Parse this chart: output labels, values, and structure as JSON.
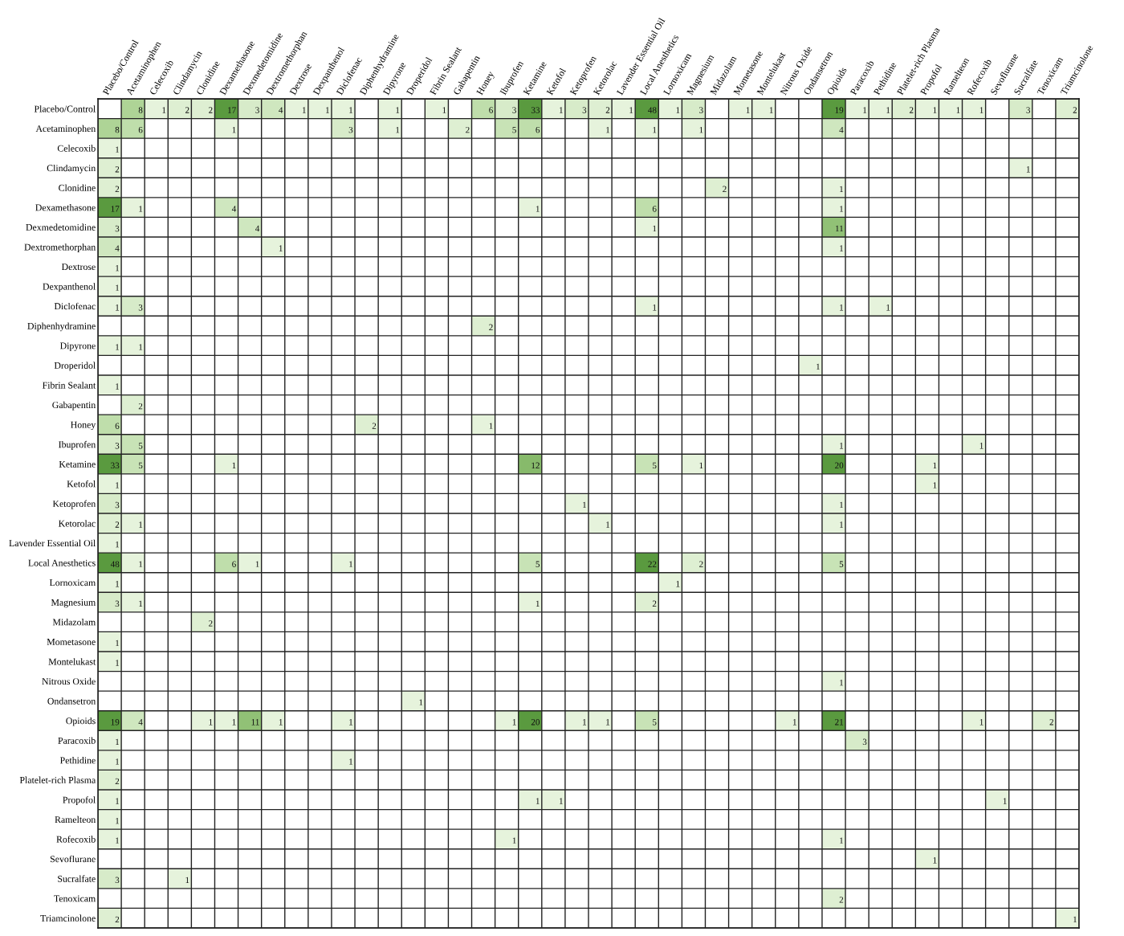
{
  "chart_data": {
    "type": "heatmap",
    "categories": [
      "Placebo/Control",
      "Acetaminophen",
      "Celecoxib",
      "Clindamycin",
      "Clonidine",
      "Dexamethasone",
      "Dexmedetomidine",
      "Dextromethorphan",
      "Dextrose",
      "Dexpanthenol",
      "Diclofenac",
      "Diphenhydramine",
      "Dipyrone",
      "Droperidol",
      "Fibrin Sealant",
      "Gabapentin",
      "Honey",
      "Ibuprofen",
      "Ketamine",
      "Ketofol",
      "Ketoprofen",
      "Ketorolac",
      "Lavender Essential Oil",
      "Local Anesthetics",
      "Lornoxicam",
      "Magnesium",
      "Midazolam",
      "Mometasone",
      "Montelukast",
      "Nitrous Oxide",
      "Ondansetron",
      "Opioids",
      "Paracoxib",
      "Pethidine",
      "Platelet-rich Plasma",
      "Propofol",
      "Ramelteon",
      "Rofecoxib",
      "Sevoflurane",
      "Sucralfate",
      "Tenoxicam",
      "Triamcinolone"
    ],
    "y_categories": [
      "Placebo/Control",
      "Acetaminophen",
      "Celecoxib",
      "Clindamycin",
      "Clonidine",
      "Dexamethasone",
      "Dexmedetomidine",
      "Dextromethorphan",
      "Dextrose",
      "Dexpanthenol",
      "Diclofenac",
      "Diphenhydramine",
      "Dipyrone",
      "Droperidol",
      "Fibrin Sealant",
      "Gabapentin",
      "Honey",
      "Ibuprofen",
      "Ketamine",
      "Ketofol",
      "Ketoprofen",
      "Ketorolac",
      "Lavender Essential Oil",
      "Local Anesthetics",
      "Lornoxicam",
      "Magnesium",
      "Midazolam",
      "Mometasone",
      "Montelukast",
      "Nitrous Oxide",
      "Ondansetron",
      "Opioids",
      "Paracoxib",
      "Pethidine",
      "Platelet-rich Plasma",
      "Propofol",
      "Ramelteon",
      "Rofecoxib",
      "Sevoflurane",
      "Sucralfate",
      "Tenoxicam",
      "Triamcinolone"
    ],
    "data_labels": true,
    "grid": true,
    "cells": [
      [
        null,
        8,
        1,
        2,
        2,
        17,
        3,
        4,
        1,
        1,
        1,
        null,
        1,
        null,
        1,
        null,
        6,
        3,
        33,
        1,
        3,
        2,
        1,
        48,
        1,
        3,
        null,
        1,
        1,
        null,
        null,
        19,
        1,
        1,
        2,
        1,
        1,
        1,
        null,
        3,
        null,
        2
      ],
      [
        8,
        6,
        null,
        null,
        null,
        1,
        null,
        null,
        null,
        null,
        3,
        null,
        1,
        null,
        null,
        2,
        null,
        5,
        6,
        null,
        null,
        1,
        null,
        1,
        null,
        1,
        null,
        null,
        null,
        null,
        null,
        4,
        null,
        null,
        null,
        null,
        null,
        null,
        null,
        null,
        null,
        null
      ],
      [
        1,
        null,
        null,
        null,
        null,
        null,
        null,
        null,
        null,
        null,
        null,
        null,
        null,
        null,
        null,
        null,
        null,
        null,
        null,
        null,
        null,
        null,
        null,
        null,
        null,
        null,
        null,
        null,
        null,
        null,
        null,
        null,
        null,
        null,
        null,
        null,
        null,
        null,
        null,
        null,
        null,
        null
      ],
      [
        2,
        null,
        null,
        null,
        null,
        null,
        null,
        null,
        null,
        null,
        null,
        null,
        null,
        null,
        null,
        null,
        null,
        null,
        null,
        null,
        null,
        null,
        null,
        null,
        null,
        null,
        null,
        null,
        null,
        null,
        null,
        null,
        null,
        null,
        null,
        null,
        null,
        null,
        null,
        1,
        null,
        null
      ],
      [
        2,
        null,
        null,
        null,
        null,
        null,
        null,
        null,
        null,
        null,
        null,
        null,
        null,
        null,
        null,
        null,
        null,
        null,
        null,
        null,
        null,
        null,
        null,
        null,
        null,
        null,
        2,
        null,
        null,
        null,
        null,
        1,
        null,
        null,
        null,
        null,
        null,
        null,
        null,
        null,
        null,
        null
      ],
      [
        17,
        1,
        null,
        null,
        null,
        4,
        null,
        null,
        null,
        null,
        null,
        null,
        null,
        null,
        null,
        null,
        null,
        null,
        1,
        null,
        null,
        null,
        null,
        6,
        null,
        null,
        null,
        null,
        null,
        null,
        null,
        1,
        null,
        null,
        null,
        null,
        null,
        null,
        null,
        null,
        null,
        null
      ],
      [
        3,
        null,
        null,
        null,
        null,
        null,
        4,
        null,
        null,
        null,
        null,
        null,
        null,
        null,
        null,
        null,
        null,
        null,
        null,
        null,
        null,
        null,
        null,
        1,
        null,
        null,
        null,
        null,
        null,
        null,
        null,
        11,
        null,
        null,
        null,
        null,
        null,
        null,
        null,
        null,
        null,
        null
      ],
      [
        4,
        null,
        null,
        null,
        null,
        null,
        null,
        1,
        null,
        null,
        null,
        null,
        null,
        null,
        null,
        null,
        null,
        null,
        null,
        null,
        null,
        null,
        null,
        null,
        null,
        null,
        null,
        null,
        null,
        null,
        null,
        1,
        null,
        null,
        null,
        null,
        null,
        null,
        null,
        null,
        null,
        null
      ],
      [
        1,
        null,
        null,
        null,
        null,
        null,
        null,
        null,
        null,
        null,
        null,
        null,
        null,
        null,
        null,
        null,
        null,
        null,
        null,
        null,
        null,
        null,
        null,
        null,
        null,
        null,
        null,
        null,
        null,
        null,
        null,
        null,
        null,
        null,
        null,
        null,
        null,
        null,
        null,
        null,
        null,
        null
      ],
      [
        1,
        null,
        null,
        null,
        null,
        null,
        null,
        null,
        null,
        null,
        null,
        null,
        null,
        null,
        null,
        null,
        null,
        null,
        null,
        null,
        null,
        null,
        null,
        null,
        null,
        null,
        null,
        null,
        null,
        null,
        null,
        null,
        null,
        null,
        null,
        null,
        null,
        null,
        null,
        null,
        null,
        null
      ],
      [
        1,
        3,
        null,
        null,
        null,
        null,
        null,
        null,
        null,
        null,
        null,
        null,
        null,
        null,
        null,
        null,
        null,
        null,
        null,
        null,
        null,
        null,
        null,
        1,
        null,
        null,
        null,
        null,
        null,
        null,
        null,
        1,
        null,
        1,
        null,
        null,
        null,
        null,
        null,
        null,
        null,
        null
      ],
      [
        null,
        null,
        null,
        null,
        null,
        null,
        null,
        null,
        null,
        null,
        null,
        null,
        null,
        null,
        null,
        null,
        2,
        null,
        null,
        null,
        null,
        null,
        null,
        null,
        null,
        null,
        null,
        null,
        null,
        null,
        null,
        null,
        null,
        null,
        null,
        null,
        null,
        null,
        null,
        null,
        null,
        null
      ],
      [
        1,
        1,
        null,
        null,
        null,
        null,
        null,
        null,
        null,
        null,
        null,
        null,
        null,
        null,
        null,
        null,
        null,
        null,
        null,
        null,
        null,
        null,
        null,
        null,
        null,
        null,
        null,
        null,
        null,
        null,
        null,
        null,
        null,
        null,
        null,
        null,
        null,
        null,
        null,
        null,
        null,
        null
      ],
      [
        null,
        null,
        null,
        null,
        null,
        null,
        null,
        null,
        null,
        null,
        null,
        null,
        null,
        null,
        null,
        null,
        null,
        null,
        null,
        null,
        null,
        null,
        null,
        null,
        null,
        null,
        null,
        null,
        null,
        null,
        1,
        null,
        null,
        null,
        null,
        null,
        null,
        null,
        null,
        null,
        null,
        null
      ],
      [
        1,
        null,
        null,
        null,
        null,
        null,
        null,
        null,
        null,
        null,
        null,
        null,
        null,
        null,
        null,
        null,
        null,
        null,
        null,
        null,
        null,
        null,
        null,
        null,
        null,
        null,
        null,
        null,
        null,
        null,
        null,
        null,
        null,
        null,
        null,
        null,
        null,
        null,
        null,
        null,
        null,
        null
      ],
      [
        null,
        2,
        null,
        null,
        null,
        null,
        null,
        null,
        null,
        null,
        null,
        null,
        null,
        null,
        null,
        null,
        null,
        null,
        null,
        null,
        null,
        null,
        null,
        null,
        null,
        null,
        null,
        null,
        null,
        null,
        null,
        null,
        null,
        null,
        null,
        null,
        null,
        null,
        null,
        null,
        null,
        null
      ],
      [
        6,
        null,
        null,
        null,
        null,
        null,
        null,
        null,
        null,
        null,
        null,
        2,
        null,
        null,
        null,
        null,
        1,
        null,
        null,
        null,
        null,
        null,
        null,
        null,
        null,
        null,
        null,
        null,
        null,
        null,
        null,
        null,
        null,
        null,
        null,
        null,
        null,
        null,
        null,
        null,
        null,
        null
      ],
      [
        3,
        5,
        null,
        null,
        null,
        null,
        null,
        null,
        null,
        null,
        null,
        null,
        null,
        null,
        null,
        null,
        null,
        null,
        null,
        null,
        null,
        null,
        null,
        null,
        null,
        null,
        null,
        null,
        null,
        null,
        null,
        1,
        null,
        null,
        null,
        null,
        null,
        1,
        null,
        null,
        null,
        null
      ],
      [
        33,
        5,
        null,
        null,
        null,
        1,
        null,
        null,
        null,
        null,
        null,
        null,
        null,
        null,
        null,
        null,
        null,
        null,
        12,
        null,
        null,
        null,
        null,
        5,
        null,
        1,
        null,
        null,
        null,
        null,
        null,
        20,
        null,
        null,
        null,
        1,
        null,
        null,
        null,
        null,
        null,
        null
      ],
      [
        1,
        null,
        null,
        null,
        null,
        null,
        null,
        null,
        null,
        null,
        null,
        null,
        null,
        null,
        null,
        null,
        null,
        null,
        null,
        null,
        null,
        null,
        null,
        null,
        null,
        null,
        null,
        null,
        null,
        null,
        null,
        null,
        null,
        null,
        null,
        1,
        null,
        null,
        null,
        null,
        null,
        null
      ],
      [
        3,
        null,
        null,
        null,
        null,
        null,
        null,
        null,
        null,
        null,
        null,
        null,
        null,
        null,
        null,
        null,
        null,
        null,
        null,
        null,
        1,
        null,
        null,
        null,
        null,
        null,
        null,
        null,
        null,
        null,
        null,
        1,
        null,
        null,
        null,
        null,
        null,
        null,
        null,
        null,
        null,
        null
      ],
      [
        2,
        1,
        null,
        null,
        null,
        null,
        null,
        null,
        null,
        null,
        null,
        null,
        null,
        null,
        null,
        null,
        null,
        null,
        null,
        null,
        null,
        1,
        null,
        null,
        null,
        null,
        null,
        null,
        null,
        null,
        null,
        1,
        null,
        null,
        null,
        null,
        null,
        null,
        null,
        null,
        null,
        null
      ],
      [
        1,
        null,
        null,
        null,
        null,
        null,
        null,
        null,
        null,
        null,
        null,
        null,
        null,
        null,
        null,
        null,
        null,
        null,
        null,
        null,
        null,
        null,
        null,
        null,
        null,
        null,
        null,
        null,
        null,
        null,
        null,
        null,
        null,
        null,
        null,
        null,
        null,
        null,
        null,
        null,
        null,
        null
      ],
      [
        48,
        1,
        null,
        null,
        null,
        6,
        1,
        null,
        null,
        null,
        1,
        null,
        null,
        null,
        null,
        null,
        null,
        null,
        5,
        null,
        null,
        null,
        null,
        22,
        null,
        2,
        null,
        null,
        null,
        null,
        null,
        5,
        null,
        null,
        null,
        null,
        null,
        null,
        null,
        null,
        null,
        null
      ],
      [
        1,
        null,
        null,
        null,
        null,
        null,
        null,
        null,
        null,
        null,
        null,
        null,
        null,
        null,
        null,
        null,
        null,
        null,
        null,
        null,
        null,
        null,
        null,
        null,
        1,
        null,
        null,
        null,
        null,
        null,
        null,
        null,
        null,
        null,
        null,
        null,
        null,
        null,
        null,
        null,
        null,
        null
      ],
      [
        3,
        1,
        null,
        null,
        null,
        null,
        null,
        null,
        null,
        null,
        null,
        null,
        null,
        null,
        null,
        null,
        null,
        null,
        1,
        null,
        null,
        null,
        null,
        2,
        null,
        null,
        null,
        null,
        null,
        null,
        null,
        null,
        null,
        null,
        null,
        null,
        null,
        null,
        null,
        null,
        null,
        null
      ],
      [
        null,
        null,
        null,
        null,
        2,
        null,
        null,
        null,
        null,
        null,
        null,
        null,
        null,
        null,
        null,
        null,
        null,
        null,
        null,
        null,
        null,
        null,
        null,
        null,
        null,
        null,
        null,
        null,
        null,
        null,
        null,
        null,
        null,
        null,
        null,
        null,
        null,
        null,
        null,
        null,
        null,
        null
      ],
      [
        1,
        null,
        null,
        null,
        null,
        null,
        null,
        null,
        null,
        null,
        null,
        null,
        null,
        null,
        null,
        null,
        null,
        null,
        null,
        null,
        null,
        null,
        null,
        null,
        null,
        null,
        null,
        null,
        null,
        null,
        null,
        null,
        null,
        null,
        null,
        null,
        null,
        null,
        null,
        null,
        null,
        null
      ],
      [
        1,
        null,
        null,
        null,
        null,
        null,
        null,
        null,
        null,
        null,
        null,
        null,
        null,
        null,
        null,
        null,
        null,
        null,
        null,
        null,
        null,
        null,
        null,
        null,
        null,
        null,
        null,
        null,
        null,
        null,
        null,
        null,
        null,
        null,
        null,
        null,
        null,
        null,
        null,
        null,
        null,
        null
      ],
      [
        null,
        null,
        null,
        null,
        null,
        null,
        null,
        null,
        null,
        null,
        null,
        null,
        null,
        null,
        null,
        null,
        null,
        null,
        null,
        null,
        null,
        null,
        null,
        null,
        null,
        null,
        null,
        null,
        null,
        null,
        null,
        1,
        null,
        null,
        null,
        null,
        null,
        null,
        null,
        null,
        null,
        null
      ],
      [
        null,
        null,
        null,
        null,
        null,
        null,
        null,
        null,
        null,
        null,
        null,
        null,
        null,
        1,
        null,
        null,
        null,
        null,
        null,
        null,
        null,
        null,
        null,
        null,
        null,
        null,
        null,
        null,
        null,
        null,
        null,
        null,
        null,
        null,
        null,
        null,
        null,
        null,
        null,
        null,
        null,
        null
      ],
      [
        19,
        4,
        null,
        null,
        1,
        1,
        11,
        1,
        null,
        null,
        1,
        null,
        null,
        null,
        null,
        null,
        null,
        1,
        20,
        null,
        1,
        1,
        null,
        5,
        null,
        null,
        null,
        null,
        null,
        1,
        null,
        21,
        null,
        null,
        null,
        null,
        null,
        1,
        null,
        null,
        2,
        null
      ],
      [
        1,
        null,
        null,
        null,
        null,
        null,
        null,
        null,
        null,
        null,
        null,
        null,
        null,
        null,
        null,
        null,
        null,
        null,
        null,
        null,
        null,
        null,
        null,
        null,
        null,
        null,
        null,
        null,
        null,
        null,
        null,
        null,
        3,
        null,
        null,
        null,
        null,
        null,
        null,
        null,
        null,
        null
      ],
      [
        1,
        null,
        null,
        null,
        null,
        null,
        null,
        null,
        null,
        null,
        1,
        null,
        null,
        null,
        null,
        null,
        null,
        null,
        null,
        null,
        null,
        null,
        null,
        null,
        null,
        null,
        null,
        null,
        null,
        null,
        null,
        null,
        null,
        null,
        null,
        null,
        null,
        null,
        null,
        null,
        null,
        null
      ],
      [
        2,
        null,
        null,
        null,
        null,
        null,
        null,
        null,
        null,
        null,
        null,
        null,
        null,
        null,
        null,
        null,
        null,
        null,
        null,
        null,
        null,
        null,
        null,
        null,
        null,
        null,
        null,
        null,
        null,
        null,
        null,
        null,
        null,
        null,
        null,
        null,
        null,
        null,
        null,
        null,
        null,
        null
      ],
      [
        1,
        null,
        null,
        null,
        null,
        null,
        null,
        null,
        null,
        null,
        null,
        null,
        null,
        null,
        null,
        null,
        null,
        null,
        1,
        1,
        null,
        null,
        null,
        null,
        null,
        null,
        null,
        null,
        null,
        null,
        null,
        null,
        null,
        null,
        null,
        null,
        null,
        null,
        1,
        null,
        null,
        null
      ],
      [
        1,
        null,
        null,
        null,
        null,
        null,
        null,
        null,
        null,
        null,
        null,
        null,
        null,
        null,
        null,
        null,
        null,
        null,
        null,
        null,
        null,
        null,
        null,
        null,
        null,
        null,
        null,
        null,
        null,
        null,
        null,
        null,
        null,
        null,
        null,
        null,
        null,
        null,
        null,
        null,
        null,
        null
      ],
      [
        1,
        null,
        null,
        null,
        null,
        null,
        null,
        null,
        null,
        null,
        null,
        null,
        null,
        null,
        null,
        null,
        null,
        1,
        null,
        null,
        null,
        null,
        null,
        null,
        null,
        null,
        null,
        null,
        null,
        null,
        null,
        1,
        null,
        null,
        null,
        null,
        null,
        null,
        null,
        null,
        null,
        null
      ],
      [
        null,
        null,
        null,
        null,
        null,
        null,
        null,
        null,
        null,
        null,
        null,
        null,
        null,
        null,
        null,
        null,
        null,
        null,
        null,
        null,
        null,
        null,
        null,
        null,
        null,
        null,
        null,
        null,
        null,
        null,
        null,
        null,
        null,
        null,
        null,
        1,
        null,
        null,
        null,
        null,
        null,
        null
      ],
      [
        3,
        null,
        null,
        1,
        null,
        null,
        null,
        null,
        null,
        null,
        null,
        null,
        null,
        null,
        null,
        null,
        null,
        null,
        null,
        null,
        null,
        null,
        null,
        null,
        null,
        null,
        null,
        null,
        null,
        null,
        null,
        null,
        null,
        null,
        null,
        null,
        null,
        null,
        null,
        null,
        null,
        null
      ],
      [
        null,
        null,
        null,
        null,
        null,
        null,
        null,
        null,
        null,
        null,
        null,
        null,
        null,
        null,
        null,
        null,
        null,
        null,
        null,
        null,
        null,
        null,
        null,
        null,
        null,
        null,
        null,
        null,
        null,
        null,
        null,
        2,
        null,
        null,
        null,
        null,
        null,
        null,
        null,
        null,
        null,
        null
      ],
      [
        2,
        null,
        null,
        null,
        null,
        null,
        null,
        null,
        null,
        null,
        null,
        null,
        null,
        null,
        null,
        null,
        null,
        null,
        null,
        null,
        null,
        null,
        null,
        null,
        null,
        null,
        null,
        null,
        null,
        null,
        null,
        null,
        null,
        null,
        null,
        null,
        null,
        null,
        null,
        null,
        null,
        1
      ]
    ]
  }
}
